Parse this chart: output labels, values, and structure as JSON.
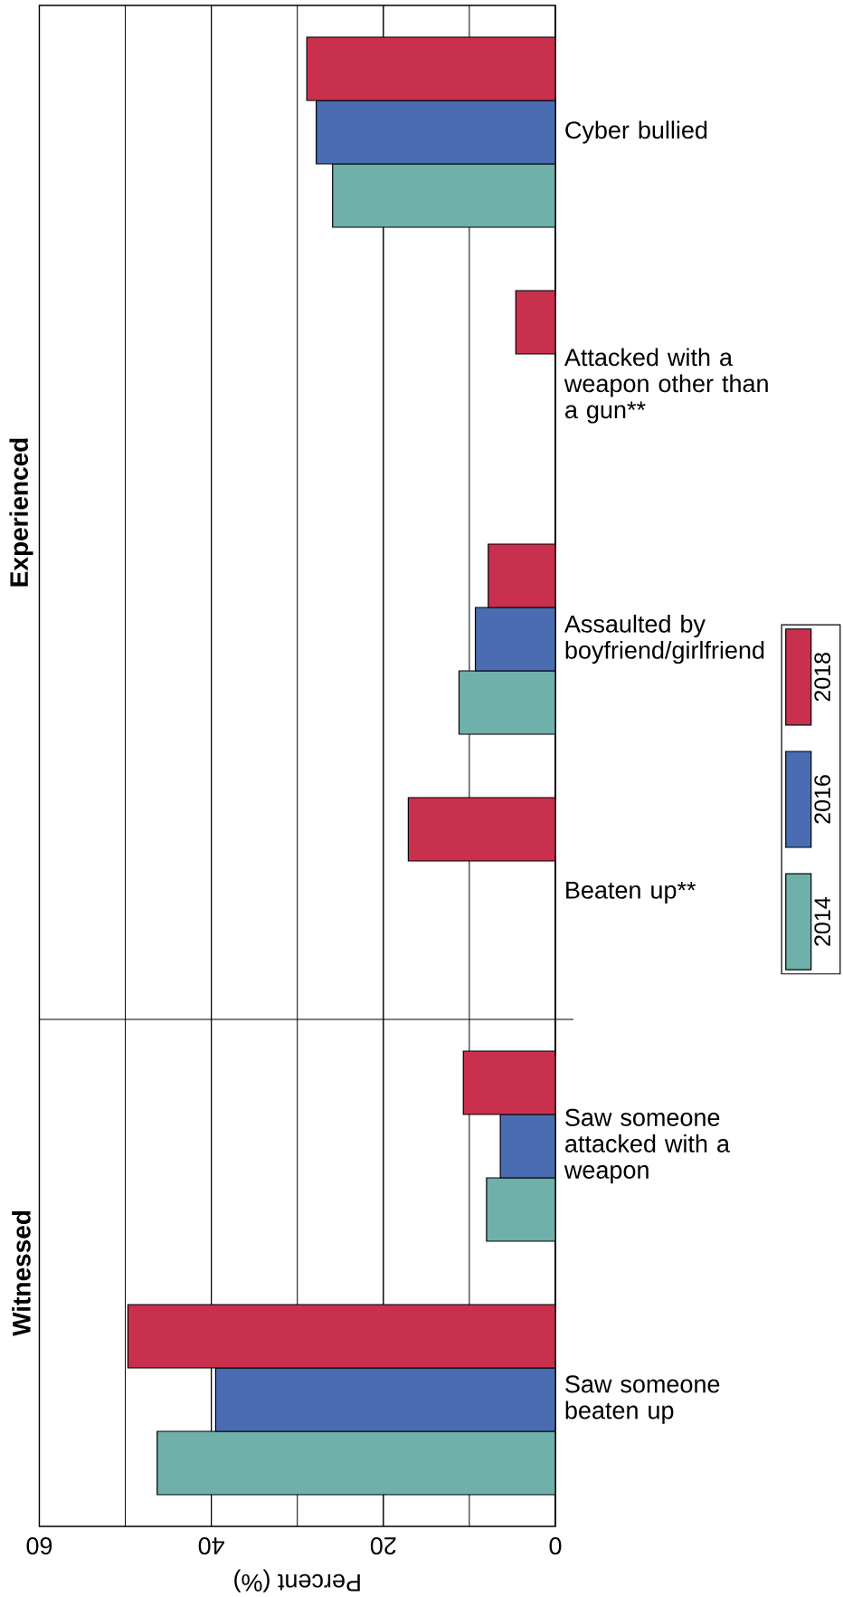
{
  "chart_data": {
    "type": "bar",
    "orientation": "horizontal",
    "xlabel": "Percent (%)",
    "categories": [
      "Cyber bullied",
      "Attacked with a weapon other than a gun**",
      "Assaulted by boyfriend/girlfriend",
      "Beaten up**",
      "Saw someone attacked with a weapon",
      "Saw someone beaten up"
    ],
    "series": [
      {
        "name": "2018",
        "color": "#c8304e",
        "values": [
          28.9,
          4.6,
          7.8,
          17.1,
          10.7,
          49.7
        ]
      },
      {
        "name": "2016",
        "color": "#4a6cb2",
        "values": [
          27.8,
          null,
          9.3,
          null,
          6.4,
          39.5
        ]
      },
      {
        "name": "2014",
        "color": "#6fb0ab",
        "values": [
          25.9,
          null,
          11.2,
          null,
          8.0,
          46.3
        ]
      }
    ],
    "xlim": [
      60,
      0
    ],
    "xticks": [
      0,
      20,
      40,
      60
    ],
    "grid": "x",
    "legend": "right",
    "annotations": [
      "Experienced",
      "Witnessed"
    ]
  }
}
